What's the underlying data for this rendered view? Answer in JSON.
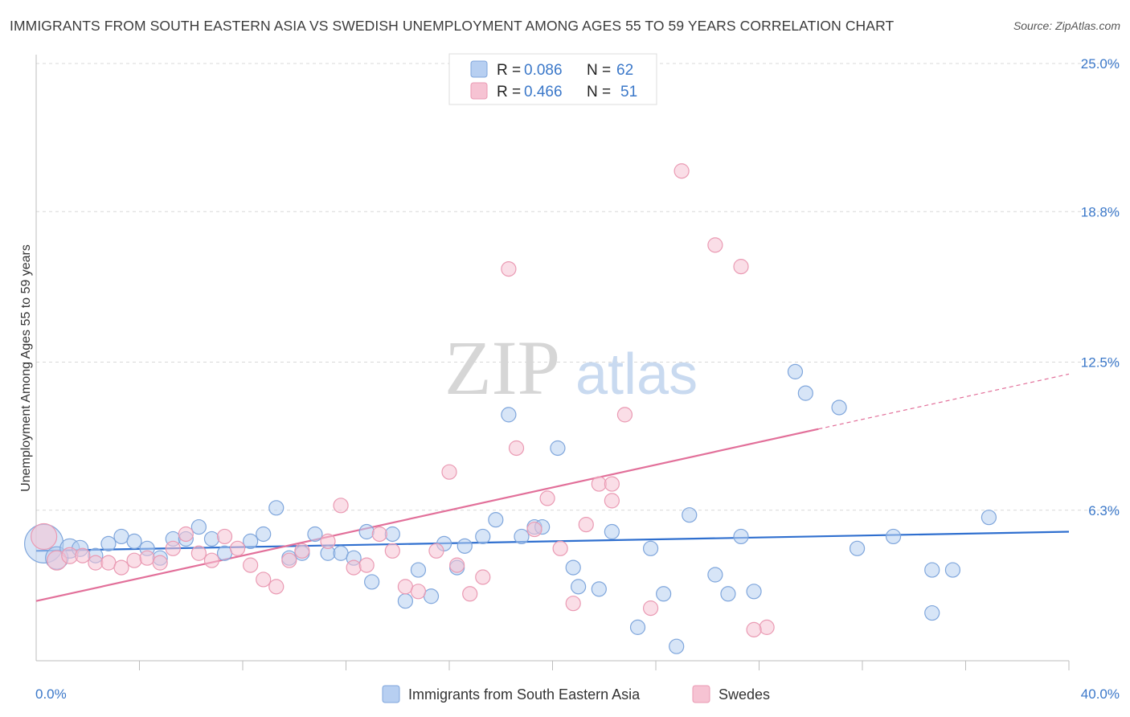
{
  "header": {
    "title": "IMMIGRANTS FROM SOUTH EASTERN ASIA VS SWEDISH UNEMPLOYMENT AMONG AGES 55 TO 59 YEARS CORRELATION CHART",
    "source": "Source: ZipAtlas.com"
  },
  "watermark": {
    "zip": "ZIP",
    "atlas": "atlas"
  },
  "colors": {
    "blue_fill": "#b7cff1",
    "blue_stroke": "#7fa6dc",
    "blue_line": "#2f6fcf",
    "pink_fill": "#f6c3d3",
    "pink_stroke": "#ea9ab3",
    "pink_line": "#e2709a",
    "tick_text": "#3b78c9",
    "grid": "#d9d9d9"
  },
  "legend": {
    "rows": [
      {
        "r_label": "R = ",
        "r_value": "0.086",
        "n_label": "N = ",
        "n_value": "62"
      },
      {
        "r_label": "R = ",
        "r_value": "0.466",
        "n_label": "N = ",
        "n_value": "51"
      }
    ]
  },
  "bottom_legend": {
    "series1": "Immigrants from South Eastern Asia",
    "series2": "Swedes"
  },
  "chart_data": {
    "type": "scatter",
    "title": "IMMIGRANTS FROM SOUTH EASTERN ASIA VS SWEDISH UNEMPLOYMENT AMONG AGES 55 TO 59 YEARS CORRELATION CHART",
    "xlabel": "",
    "ylabel": "Unemployment Among Ages 55 to 59 years",
    "xlim": [
      0,
      40
    ],
    "ylim": [
      0,
      25
    ],
    "x_tick_labels": [
      "0.0%",
      "40.0%"
    ],
    "y_ticks": [
      6.3,
      12.5,
      18.8,
      25.0
    ],
    "y_tick_labels": [
      "6.3%",
      "12.5%",
      "18.8%",
      "25.0%"
    ],
    "grid": true,
    "legend_position": "top-center",
    "series": [
      {
        "name": "Immigrants from South Eastern Asia",
        "color": "#7fa6dc",
        "r": 0.086,
        "n": 62,
        "trend": {
          "x": [
            0,
            40
          ],
          "y": [
            4.6,
            5.4
          ],
          "extrapolated_to": null
        },
        "points": [
          [
            0.3,
            4.9,
            24
          ],
          [
            0.8,
            4.3,
            14
          ],
          [
            1.3,
            4.7,
            12
          ],
          [
            1.7,
            4.7,
            10
          ],
          [
            2.3,
            4.4,
            9
          ],
          [
            2.8,
            4.9,
            9
          ],
          [
            3.3,
            5.2,
            9
          ],
          [
            3.8,
            5.0,
            9
          ],
          [
            4.3,
            4.7,
            9
          ],
          [
            4.8,
            4.3,
            9
          ],
          [
            5.3,
            5.1,
            9
          ],
          [
            5.8,
            5.1,
            9
          ],
          [
            6.3,
            5.6,
            9
          ],
          [
            6.8,
            5.1,
            9
          ],
          [
            7.3,
            4.5,
            9
          ],
          [
            8.3,
            5.0,
            9
          ],
          [
            8.8,
            5.3,
            9
          ],
          [
            9.3,
            6.4,
            9
          ],
          [
            9.8,
            4.3,
            9
          ],
          [
            10.3,
            4.5,
            9
          ],
          [
            10.8,
            5.3,
            9
          ],
          [
            11.3,
            4.5,
            9
          ],
          [
            11.8,
            4.5,
            9
          ],
          [
            12.3,
            4.3,
            9
          ],
          [
            12.8,
            5.4,
            9
          ],
          [
            13.0,
            3.3,
            9
          ],
          [
            13.8,
            5.3,
            9
          ],
          [
            14.3,
            2.5,
            9
          ],
          [
            14.8,
            3.8,
            9
          ],
          [
            15.3,
            2.7,
            9
          ],
          [
            15.8,
            4.9,
            9
          ],
          [
            16.3,
            3.9,
            9
          ],
          [
            16.6,
            4.8,
            9
          ],
          [
            17.3,
            5.2,
            9
          ],
          [
            17.8,
            5.9,
            9
          ],
          [
            18.3,
            10.3,
            9
          ],
          [
            18.8,
            5.2,
            9
          ],
          [
            19.3,
            5.6,
            9
          ],
          [
            19.6,
            5.6,
            9
          ],
          [
            20.2,
            8.9,
            9
          ],
          [
            20.8,
            3.9,
            9
          ],
          [
            21.0,
            3.1,
            9
          ],
          [
            21.8,
            3.0,
            9
          ],
          [
            22.3,
            5.4,
            9
          ],
          [
            23.3,
            1.4,
            9
          ],
          [
            23.8,
            4.7,
            9
          ],
          [
            24.3,
            2.8,
            9
          ],
          [
            24.8,
            0.6,
            9
          ],
          [
            25.3,
            6.1,
            9
          ],
          [
            26.3,
            3.6,
            9
          ],
          [
            26.8,
            2.8,
            9
          ],
          [
            27.3,
            5.2,
            9
          ],
          [
            27.8,
            2.9,
            9
          ],
          [
            29.4,
            12.1,
            9
          ],
          [
            29.8,
            11.2,
            9
          ],
          [
            31.1,
            10.6,
            9
          ],
          [
            31.8,
            4.7,
            9
          ],
          [
            33.2,
            5.2,
            9
          ],
          [
            34.7,
            3.8,
            9
          ],
          [
            34.7,
            2.0,
            9
          ],
          [
            35.5,
            3.8,
            9
          ],
          [
            36.9,
            6.0,
            9
          ]
        ]
      },
      {
        "name": "Swedes",
        "color": "#ea9ab3",
        "r": 0.466,
        "n": 51,
        "trend": {
          "x": [
            0,
            30.3
          ],
          "y": [
            2.5,
            9.7
          ],
          "extrapolated_to": [
            40,
            12.0
          ]
        },
        "points": [
          [
            0.3,
            5.2,
            16
          ],
          [
            0.8,
            4.2,
            12
          ],
          [
            1.3,
            4.4,
            10
          ],
          [
            1.8,
            4.4,
            9
          ],
          [
            2.3,
            4.1,
            9
          ],
          [
            2.8,
            4.1,
            9
          ],
          [
            3.3,
            3.9,
            9
          ],
          [
            3.8,
            4.2,
            9
          ],
          [
            4.3,
            4.3,
            9
          ],
          [
            4.8,
            4.1,
            9
          ],
          [
            5.3,
            4.7,
            9
          ],
          [
            5.8,
            5.3,
            9
          ],
          [
            6.3,
            4.5,
            9
          ],
          [
            6.8,
            4.2,
            9
          ],
          [
            7.3,
            5.2,
            9
          ],
          [
            7.8,
            4.7,
            9
          ],
          [
            8.3,
            4.0,
            9
          ],
          [
            8.8,
            3.4,
            9
          ],
          [
            9.3,
            3.1,
            9
          ],
          [
            9.8,
            4.2,
            9
          ],
          [
            10.3,
            4.6,
            9
          ],
          [
            11.3,
            5.0,
            9
          ],
          [
            11.8,
            6.5,
            9
          ],
          [
            12.3,
            3.9,
            9
          ],
          [
            12.8,
            4.0,
            9
          ],
          [
            13.3,
            5.3,
            9
          ],
          [
            13.8,
            4.6,
            9
          ],
          [
            14.3,
            3.1,
            9
          ],
          [
            14.8,
            2.9,
            9
          ],
          [
            15.5,
            4.6,
            9
          ],
          [
            16.0,
            7.9,
            9
          ],
          [
            16.3,
            4.0,
            9
          ],
          [
            16.8,
            2.8,
            9
          ],
          [
            17.3,
            3.5,
            9
          ],
          [
            18.3,
            16.4,
            9
          ],
          [
            18.6,
            8.9,
            9
          ],
          [
            19.3,
            5.5,
            9
          ],
          [
            19.8,
            6.8,
            9
          ],
          [
            20.3,
            4.7,
            9
          ],
          [
            20.8,
            2.4,
            9
          ],
          [
            21.3,
            5.7,
            9
          ],
          [
            21.8,
            7.4,
            9
          ],
          [
            22.3,
            7.4,
            9
          ],
          [
            22.3,
            6.7,
            9
          ],
          [
            22.8,
            10.3,
            9
          ],
          [
            23.8,
            2.2,
            9
          ],
          [
            25.0,
            20.5,
            9
          ],
          [
            26.3,
            17.4,
            9
          ],
          [
            27.3,
            16.5,
            9
          ],
          [
            28.3,
            1.4,
            9
          ],
          [
            27.8,
            1.3,
            9
          ]
        ]
      }
    ]
  }
}
